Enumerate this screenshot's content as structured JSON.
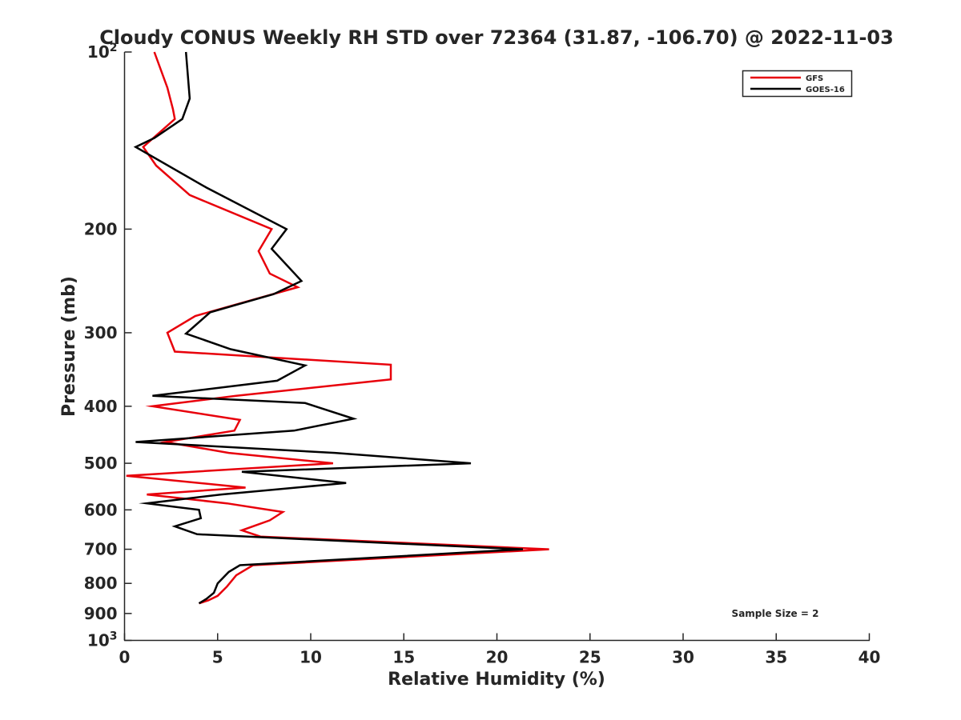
{
  "chart_data": {
    "type": "line",
    "title": "Cloudy CONUS Weekly RH STD over 72364 (31.87, -106.70) @ 2022-11-03",
    "xlabel": "Relative Humidity (%)",
    "ylabel": "Pressure (mb)",
    "xlim": [
      0,
      40
    ],
    "ylim": [
      100,
      1000
    ],
    "y_scale": "log",
    "y_reversed": true,
    "grid": false,
    "legend_position": "top-right",
    "annotation": "Sample Size = 2",
    "x_ticks": [
      0,
      5,
      10,
      15,
      20,
      25,
      30,
      35,
      40
    ],
    "x_tick_labels": [
      "0",
      "5",
      "10",
      "15",
      "20",
      "25",
      "30",
      "35",
      "40"
    ],
    "y_ticks": [
      100,
      200,
      300,
      400,
      500,
      600,
      700,
      800,
      900,
      1000
    ],
    "y_tick_labels": [
      "10²",
      "200",
      "300",
      "400",
      "500",
      "600",
      "700",
      "800",
      "900",
      "10³"
    ],
    "series": [
      {
        "name": "GFS",
        "color": "#e8000b",
        "points": [
          [
            1.6,
            100
          ],
          [
            2.3,
            115
          ],
          [
            2.6,
            125
          ],
          [
            2.7,
            130
          ],
          [
            1.0,
            145
          ],
          [
            1.7,
            156
          ],
          [
            3.5,
            175
          ],
          [
            7.9,
            200
          ],
          [
            7.2,
            218
          ],
          [
            7.8,
            238
          ],
          [
            9.3,
            251
          ],
          [
            3.8,
            281
          ],
          [
            2.3,
            300
          ],
          [
            2.7,
            323
          ],
          [
            14.3,
            340
          ],
          [
            14.3,
            360
          ],
          [
            6.0,
            384
          ],
          [
            1.5,
            400
          ],
          [
            6.2,
            422
          ],
          [
            5.9,
            440
          ],
          [
            2.2,
            460
          ],
          [
            5.6,
            480
          ],
          [
            11.2,
            500
          ],
          [
            0.1,
            525
          ],
          [
            6.5,
            550
          ],
          [
            1.2,
            565
          ],
          [
            5.5,
            585
          ],
          [
            8.5,
            605
          ],
          [
            7.8,
            625
          ],
          [
            6.3,
            650
          ],
          [
            7.3,
            666
          ],
          [
            22.8,
            700
          ],
          [
            6.9,
            745
          ],
          [
            6.0,
            775
          ],
          [
            5.5,
            810
          ],
          [
            5.0,
            840
          ],
          [
            4.5,
            855
          ],
          [
            4.0,
            865
          ]
        ]
      },
      {
        "name": "GOES-16",
        "color": "#000000",
        "points": [
          [
            3.3,
            100
          ],
          [
            3.5,
            120
          ],
          [
            3.1,
            130
          ],
          [
            1.6,
            140
          ],
          [
            0.6,
            145
          ],
          [
            4.4,
            170
          ],
          [
            8.7,
            200
          ],
          [
            7.9,
            216
          ],
          [
            9.5,
            245
          ],
          [
            8.0,
            258
          ],
          [
            4.6,
            277
          ],
          [
            3.3,
            301
          ],
          [
            5.7,
            320
          ],
          [
            9.7,
            341
          ],
          [
            8.2,
            362
          ],
          [
            1.5,
            384
          ],
          [
            9.7,
            395
          ],
          [
            12.3,
            420
          ],
          [
            9.1,
            440
          ],
          [
            0.6,
            460
          ],
          [
            11.3,
            480
          ],
          [
            18.6,
            500
          ],
          [
            6.3,
            517
          ],
          [
            11.9,
            540
          ],
          [
            5.2,
            565
          ],
          [
            1.2,
            585
          ],
          [
            4.0,
            600
          ],
          [
            4.1,
            620
          ],
          [
            2.7,
            640
          ],
          [
            3.9,
            660
          ],
          [
            21.4,
            700
          ],
          [
            6.2,
            745
          ],
          [
            5.6,
            765
          ],
          [
            5.0,
            800
          ],
          [
            4.8,
            830
          ],
          [
            4.4,
            850
          ],
          [
            4.0,
            865
          ]
        ]
      }
    ]
  }
}
